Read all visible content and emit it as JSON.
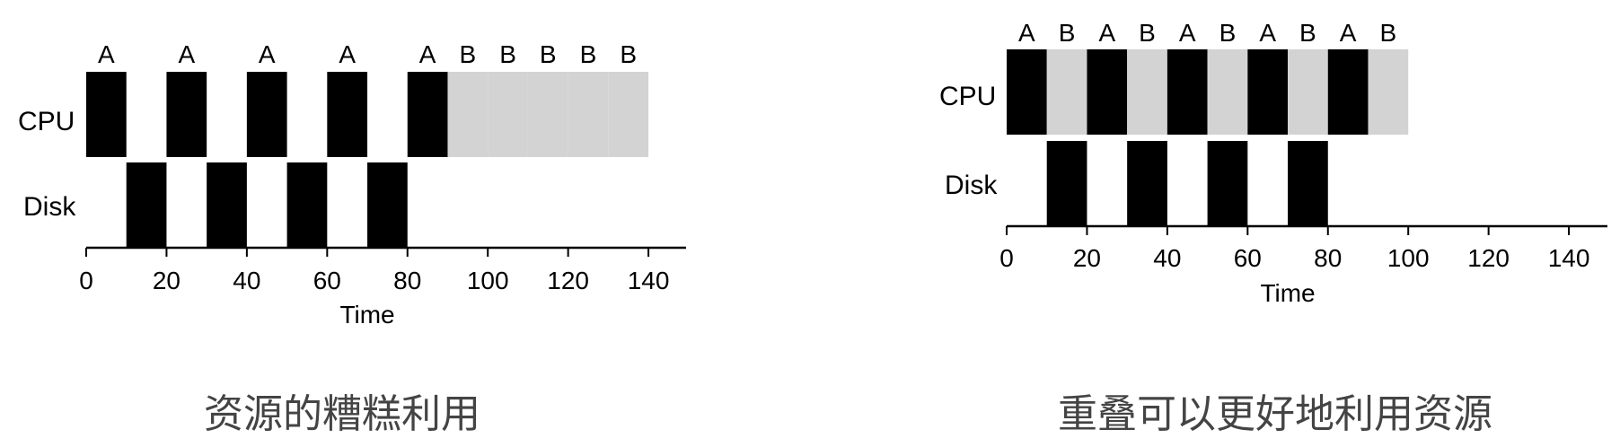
{
  "captions": {
    "left": "资源的糟糕利用",
    "right": "重叠可以更好地利用资源"
  },
  "colors": {
    "busy": "#000000",
    "idle": "#d3d3d3",
    "axis": "#000000",
    "text": "#000000"
  },
  "timelines": [
    {
      "id": "poor-utilization",
      "rows": [
        "CPU",
        "Disk"
      ],
      "xlabel": "Time",
      "ticks": [
        0,
        20,
        40,
        60,
        80,
        100,
        120,
        140
      ],
      "cpu": [
        {
          "label": "A",
          "start": 0,
          "end": 10,
          "kind": "busy"
        },
        {
          "label": "A",
          "start": 20,
          "end": 30,
          "kind": "busy"
        },
        {
          "label": "A",
          "start": 40,
          "end": 50,
          "kind": "busy"
        },
        {
          "label": "A",
          "start": 60,
          "end": 70,
          "kind": "busy"
        },
        {
          "label": "A",
          "start": 80,
          "end": 90,
          "kind": "busy"
        },
        {
          "label": "B",
          "start": 90,
          "end": 100,
          "kind": "idle"
        },
        {
          "label": "B",
          "start": 100,
          "end": 110,
          "kind": "idle"
        },
        {
          "label": "B",
          "start": 110,
          "end": 120,
          "kind": "idle"
        },
        {
          "label": "B",
          "start": 120,
          "end": 130,
          "kind": "idle"
        },
        {
          "label": "B",
          "start": 130,
          "end": 140,
          "kind": "idle"
        }
      ],
      "disk": [
        {
          "start": 10,
          "end": 20
        },
        {
          "start": 30,
          "end": 40
        },
        {
          "start": 50,
          "end": 60
        },
        {
          "start": 70,
          "end": 80
        }
      ]
    },
    {
      "id": "overlap-utilization",
      "rows": [
        "CPU",
        "Disk"
      ],
      "xlabel": "Time",
      "ticks": [
        0,
        20,
        40,
        60,
        80,
        100,
        120,
        140
      ],
      "cpu": [
        {
          "label": "A",
          "start": 0,
          "end": 10,
          "kind": "busy"
        },
        {
          "label": "B",
          "start": 10,
          "end": 20,
          "kind": "idle"
        },
        {
          "label": "A",
          "start": 20,
          "end": 30,
          "kind": "busy"
        },
        {
          "label": "B",
          "start": 30,
          "end": 40,
          "kind": "idle"
        },
        {
          "label": "A",
          "start": 40,
          "end": 50,
          "kind": "busy"
        },
        {
          "label": "B",
          "start": 50,
          "end": 60,
          "kind": "idle"
        },
        {
          "label": "A",
          "start": 60,
          "end": 70,
          "kind": "busy"
        },
        {
          "label": "B",
          "start": 70,
          "end": 80,
          "kind": "idle"
        },
        {
          "label": "A",
          "start": 80,
          "end": 90,
          "kind": "busy"
        },
        {
          "label": "B",
          "start": 90,
          "end": 100,
          "kind": "idle"
        }
      ],
      "disk": [
        {
          "start": 10,
          "end": 20
        },
        {
          "start": 30,
          "end": 40
        },
        {
          "start": 50,
          "end": 60
        },
        {
          "start": 70,
          "end": 80
        }
      ]
    }
  ]
}
